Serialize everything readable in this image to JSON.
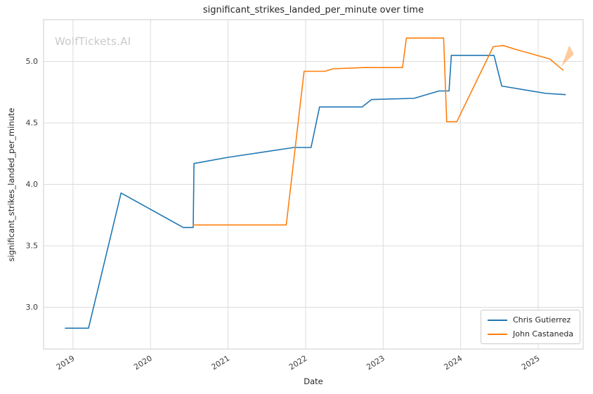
{
  "title": "significant_strikes_landed_per_minute over time",
  "watermark": "WolfTickets.AI",
  "axes": {
    "xlabel": "Date",
    "ylabel": "significant_strikes_landed_per_minute"
  },
  "chart_data": {
    "type": "line",
    "title": "significant_strikes_landed_per_minute over time",
    "xlabel": "Date",
    "ylabel": "significant_strikes_landed_per_minute",
    "xlim": [
      2018.62,
      2025.58
    ],
    "ylim": [
      2.66,
      5.34
    ],
    "x_ticks": [
      2019,
      2020,
      2021,
      2022,
      2023,
      2024,
      2025
    ],
    "y_ticks": [
      "3.0",
      "3.5",
      "4.0",
      "4.5",
      "5.0"
    ],
    "grid": true,
    "legend_position": "lower right",
    "series": [
      {
        "name": "Chris Gutierrez",
        "color": "#1f77b4",
        "points": [
          [
            2018.9,
            2.83
          ],
          [
            2019.2,
            2.83
          ],
          [
            2019.62,
            3.93
          ],
          [
            2020.42,
            3.65
          ],
          [
            2020.55,
            3.65
          ],
          [
            2020.56,
            4.17
          ],
          [
            2021.0,
            4.22
          ],
          [
            2021.85,
            4.3
          ],
          [
            2022.07,
            4.3
          ],
          [
            2022.18,
            4.63
          ],
          [
            2022.73,
            4.63
          ],
          [
            2022.85,
            4.69
          ],
          [
            2023.4,
            4.7
          ],
          [
            2023.72,
            4.76
          ],
          [
            2023.85,
            4.76
          ],
          [
            2023.88,
            5.05
          ],
          [
            2024.43,
            5.05
          ],
          [
            2024.53,
            4.8
          ],
          [
            2025.1,
            4.74
          ],
          [
            2025.35,
            4.73
          ]
        ]
      },
      {
        "name": "John Castaneda",
        "color": "#ff7f0e",
        "points": [
          [
            2020.55,
            3.67
          ],
          [
            2021.75,
            3.67
          ],
          [
            2021.98,
            4.92
          ],
          [
            2022.25,
            4.92
          ],
          [
            2022.35,
            4.94
          ],
          [
            2022.75,
            4.95
          ],
          [
            2023.25,
            4.95
          ],
          [
            2023.3,
            5.19
          ],
          [
            2023.78,
            5.19
          ],
          [
            2023.82,
            4.51
          ],
          [
            2023.95,
            4.51
          ],
          [
            2024.42,
            5.12
          ],
          [
            2024.55,
            5.13
          ],
          [
            2024.7,
            5.1
          ],
          [
            2025.15,
            5.02
          ],
          [
            2025.32,
            4.93
          ]
        ]
      }
    ],
    "annotation": {
      "type": "arrow-wedge",
      "color": "#ffa04d",
      "opacity": 0.55,
      "points": [
        [
          2025.3,
          4.96
        ],
        [
          2025.4,
          5.13
        ],
        [
          2025.46,
          5.06
        ]
      ]
    },
    "colors": {
      "grid": "#dcdcdc",
      "spine": "#cccccc",
      "text": "#262626",
      "tick_text": "#3d3d3d",
      "watermark": "#c9c9c9"
    }
  }
}
